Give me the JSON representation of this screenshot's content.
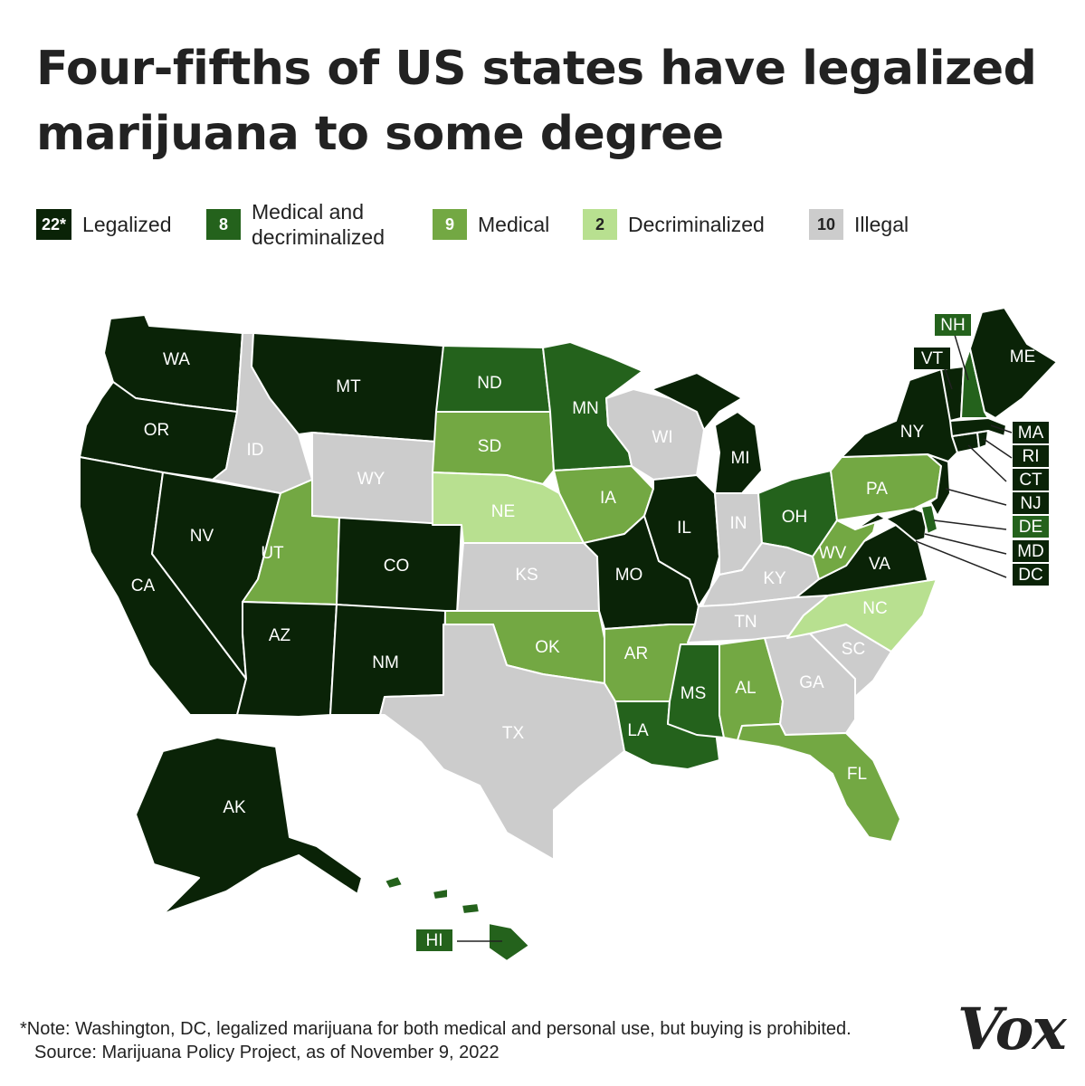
{
  "title": "Four-fifths of US states have legalized marijuana to some degree",
  "legend": [
    {
      "count": "22*",
      "label": "Legalized",
      "color": "#0a2307",
      "text_color": "#ffffff"
    },
    {
      "count": "8",
      "label": "Medical and\ndecriminalized",
      "color": "#24621c",
      "text_color": "#ffffff"
    },
    {
      "count": "9",
      "label": "Medical",
      "color": "#73a843",
      "text_color": "#ffffff"
    },
    {
      "count": "2",
      "label": "Decriminalized",
      "color": "#b8e090",
      "text_color": "#222222"
    },
    {
      "count": "10",
      "label": "Illegal",
      "color": "#cccccc",
      "text_color": "#222222"
    }
  ],
  "states": [
    {
      "abbr": "WA",
      "status": "Legalized"
    },
    {
      "abbr": "OR",
      "status": "Legalized"
    },
    {
      "abbr": "CA",
      "status": "Legalized"
    },
    {
      "abbr": "NV",
      "status": "Legalized"
    },
    {
      "abbr": "MT",
      "status": "Legalized"
    },
    {
      "abbr": "AZ",
      "status": "Legalized"
    },
    {
      "abbr": "NM",
      "status": "Legalized"
    },
    {
      "abbr": "CO",
      "status": "Legalized"
    },
    {
      "abbr": "MO",
      "status": "Legalized"
    },
    {
      "abbr": "IL",
      "status": "Legalized"
    },
    {
      "abbr": "MI",
      "status": "Legalized"
    },
    {
      "abbr": "VA",
      "status": "Legalized"
    },
    {
      "abbr": "NY",
      "status": "Legalized"
    },
    {
      "abbr": "VT",
      "status": "Legalized"
    },
    {
      "abbr": "ME",
      "status": "Legalized"
    },
    {
      "abbr": "MA",
      "status": "Legalized"
    },
    {
      "abbr": "RI",
      "status": "Legalized"
    },
    {
      "abbr": "CT",
      "status": "Legalized"
    },
    {
      "abbr": "NJ",
      "status": "Legalized"
    },
    {
      "abbr": "MD",
      "status": "Legalized"
    },
    {
      "abbr": "DC",
      "status": "Legalized"
    },
    {
      "abbr": "AK",
      "status": "Legalized"
    },
    {
      "abbr": "ND",
      "status": "Medical and decriminalized"
    },
    {
      "abbr": "MN",
      "status": "Medical and decriminalized"
    },
    {
      "abbr": "OH",
      "status": "Medical and decriminalized"
    },
    {
      "abbr": "NH",
      "status": "Medical and decriminalized"
    },
    {
      "abbr": "DE",
      "status": "Medical and decriminalized"
    },
    {
      "abbr": "LA",
      "status": "Medical and decriminalized"
    },
    {
      "abbr": "MS",
      "status": "Medical and decriminalized"
    },
    {
      "abbr": "HI",
      "status": "Medical and decriminalized"
    },
    {
      "abbr": "UT",
      "status": "Medical"
    },
    {
      "abbr": "SD",
      "status": "Medical"
    },
    {
      "abbr": "IA",
      "status": "Medical"
    },
    {
      "abbr": "OK",
      "status": "Medical"
    },
    {
      "abbr": "AR",
      "status": "Medical"
    },
    {
      "abbr": "AL",
      "status": "Medical"
    },
    {
      "abbr": "FL",
      "status": "Medical"
    },
    {
      "abbr": "PA",
      "status": "Medical"
    },
    {
      "abbr": "WV",
      "status": "Medical"
    },
    {
      "abbr": "NE",
      "status": "Decriminalized"
    },
    {
      "abbr": "NC",
      "status": "Decriminalized"
    },
    {
      "abbr": "ID",
      "status": "Illegal"
    },
    {
      "abbr": "WY",
      "status": "Illegal"
    },
    {
      "abbr": "KS",
      "status": "Illegal"
    },
    {
      "abbr": "TX",
      "status": "Illegal"
    },
    {
      "abbr": "WI",
      "status": "Illegal"
    },
    {
      "abbr": "IN",
      "status": "Illegal"
    },
    {
      "abbr": "KY",
      "status": "Illegal"
    },
    {
      "abbr": "TN",
      "status": "Illegal"
    },
    {
      "abbr": "GA",
      "status": "Illegal"
    },
    {
      "abbr": "SC",
      "status": "Illegal"
    }
  ],
  "note": "*Note: Washington, DC, legalized marijuana for both medical and personal use, but buying is prohibited.",
  "source": "Source: Marijuana Policy Project, as of November 9, 2022",
  "logo_text": "Vox"
}
